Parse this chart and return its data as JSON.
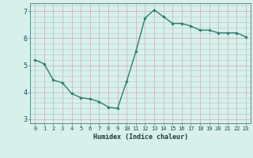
{
  "x": [
    0,
    1,
    2,
    3,
    4,
    5,
    6,
    7,
    8,
    9,
    10,
    11,
    12,
    13,
    14,
    15,
    16,
    17,
    18,
    19,
    20,
    21,
    22,
    23
  ],
  "y": [
    5.2,
    5.05,
    4.45,
    4.35,
    3.95,
    3.8,
    3.75,
    3.65,
    3.45,
    3.4,
    4.4,
    5.5,
    6.75,
    7.05,
    6.8,
    6.55,
    6.55,
    6.45,
    6.3,
    6.3,
    6.2,
    6.2,
    6.2,
    6.05
  ],
  "xlabel": "Humidex (Indice chaleur)",
  "line_color": "#2d7d6e",
  "bg_color": "#d8f0ec",
  "grid_major_color": "#c8b8b8",
  "grid_minor_color": "#b8d8d4",
  "ylim": [
    2.85,
    7.3
  ],
  "xlim": [
    -0.5,
    23.5
  ],
  "yticks": [
    3,
    4,
    5,
    6,
    7
  ],
  "xticks": [
    0,
    1,
    2,
    3,
    4,
    5,
    6,
    7,
    8,
    9,
    10,
    11,
    12,
    13,
    14,
    15,
    16,
    17,
    18,
    19,
    20,
    21,
    22,
    23
  ]
}
